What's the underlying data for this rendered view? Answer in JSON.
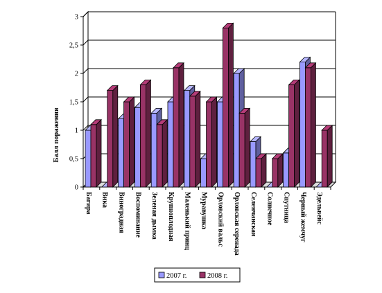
{
  "chart_data": {
    "type": "bar",
    "title": "",
    "ylabel": "Балл поражения",
    "xlabel": "",
    "ylim": [
      0,
      3
    ],
    "yticks": [
      "0",
      "0,5",
      "1",
      "1,5",
      "2",
      "2,5",
      "3"
    ],
    "grid": "horizontal",
    "style": "3d-clustered-columns",
    "legend_position": "bottom",
    "categories": [
      "Багира",
      "Вика",
      "Виноградная",
      "Воспоминание",
      "Зеленая дымка",
      "Крупноплодная",
      "Маленький принц",
      "Муравушка",
      "Орловский вальс",
      "Орловская серенада",
      "Селенчанская",
      "Солнечное",
      "Спутница",
      "Черный жемчуг",
      "Эдельвейс"
    ],
    "series": [
      {
        "name": "2007 г.",
        "color": "#9999ff",
        "values": [
          1.0,
          0,
          1.2,
          1.4,
          1.3,
          1.5,
          1.7,
          0.5,
          1.5,
          2.0,
          0.8,
          0,
          0.6,
          2.2,
          0
        ]
      },
      {
        "name": "2008 г.",
        "color": "#993366",
        "values": [
          1.1,
          1.7,
          1.5,
          1.8,
          1.1,
          2.1,
          1.6,
          1.5,
          2.8,
          1.3,
          0.5,
          0.5,
          1.8,
          2.1,
          1.0
        ]
      }
    ]
  }
}
